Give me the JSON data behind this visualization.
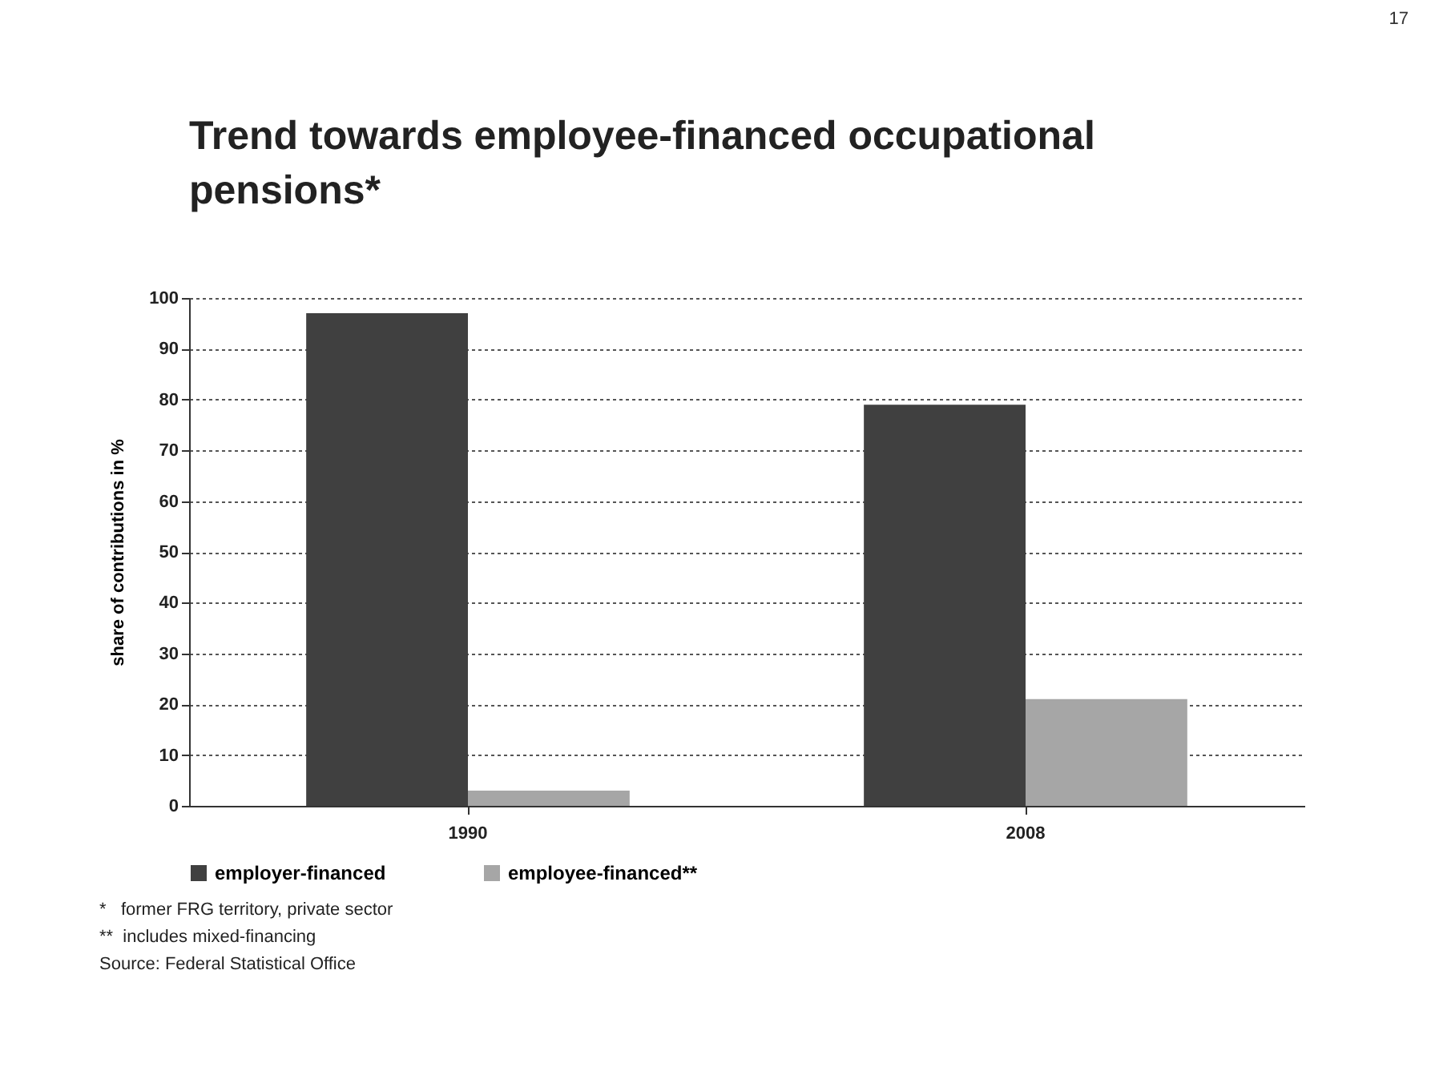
{
  "chart_data": {
    "type": "bar",
    "title": "Trend towards employee-financed occupational pensions*",
    "ylabel": "share of contributions in %",
    "categories": [
      "1990",
      "2008"
    ],
    "series": [
      {
        "name": "employer-financed",
        "color": "#404040",
        "values": [
          97,
          79
        ]
      },
      {
        "name": "employee-financed**",
        "color": "#a6a6a6",
        "values": [
          3,
          21
        ]
      }
    ],
    "ylim": [
      0,
      100
    ],
    "yticks": [
      0,
      10,
      20,
      30,
      40,
      50,
      60,
      70,
      80,
      90,
      100
    ],
    "grid": "y",
    "legend": "bottom",
    "annotations": [
      "*   former FRG territory, private sector",
      "**  includes mixed-financing",
      "Source: Federal Statistical Office",
      "17"
    ]
  }
}
